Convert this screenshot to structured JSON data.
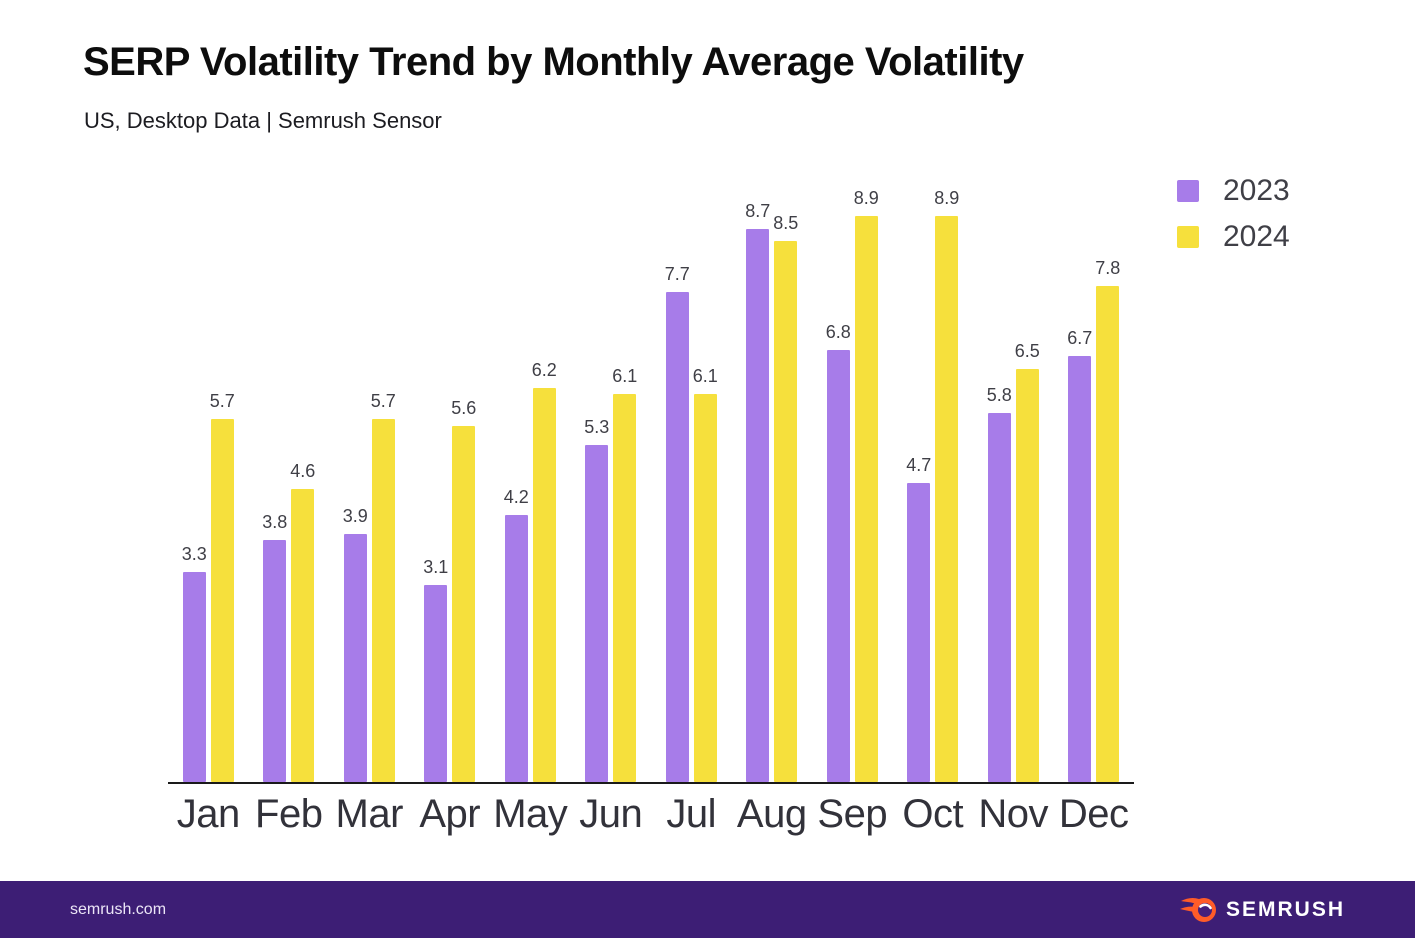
{
  "header": {
    "title": "SERP Volatility Trend by Monthly Average Volatility",
    "subtitle": "US, Desktop Data | Semrush Sensor"
  },
  "chart_data": {
    "type": "bar",
    "title": "SERP Volatility Trend by Monthly Average Volatility",
    "subtitle": "US, Desktop Data | Semrush Sensor",
    "categories": [
      "Jan",
      "Feb",
      "Mar",
      "Apr",
      "May",
      "Jun",
      "Jul",
      "Aug",
      "Sep",
      "Oct",
      "Nov",
      "Dec"
    ],
    "series": [
      {
        "name": "2023",
        "color": "#a77ce9",
        "values": [
          3.3,
          3.8,
          3.9,
          3.1,
          4.2,
          5.3,
          7.7,
          8.7,
          6.8,
          4.7,
          5.8,
          6.7
        ]
      },
      {
        "name": "2024",
        "color": "#f6e03c",
        "values": [
          5.7,
          4.6,
          5.7,
          5.6,
          6.2,
          6.1,
          6.1,
          8.5,
          8.9,
          8.9,
          6.5,
          7.8
        ]
      }
    ],
    "xlabel": "",
    "ylabel": "",
    "ylim": [
      0,
      9.4
    ],
    "grid": false,
    "value_labels": true,
    "legend_position": "top-right"
  },
  "footer": {
    "site": "semrush.com",
    "logo_text": "SEMRUSH",
    "background_color": "#3d1e75",
    "logo_accent_color": "#ff5c28"
  }
}
